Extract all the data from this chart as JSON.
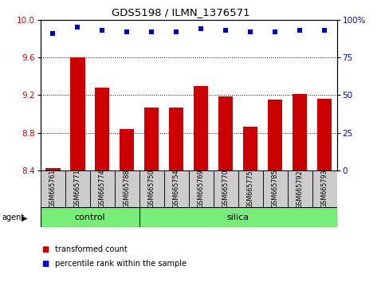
{
  "title": "GDS5198 / ILMN_1376571",
  "samples": [
    "GSM665761",
    "GSM665771",
    "GSM665774",
    "GSM665788",
    "GSM665750",
    "GSM665754",
    "GSM665769",
    "GSM665770",
    "GSM665775",
    "GSM665785",
    "GSM665792",
    "GSM665793"
  ],
  "bar_values": [
    8.43,
    9.6,
    9.28,
    8.84,
    9.07,
    9.07,
    9.3,
    9.19,
    8.87,
    9.15,
    9.21,
    9.16
  ],
  "percentile_values": [
    91,
    95,
    93,
    92,
    92,
    92,
    94,
    93,
    92,
    92,
    93,
    93
  ],
  "bar_color": "#cc0000",
  "dot_color": "#0000cc",
  "ylim_left": [
    8.4,
    10.0
  ],
  "ylim_right": [
    0,
    100
  ],
  "yticks_left": [
    8.4,
    8.8,
    9.2,
    9.6,
    10.0
  ],
  "yticks_right": [
    0,
    25,
    50,
    75,
    100
  ],
  "grid_lines": [
    8.8,
    9.2,
    9.6
  ],
  "control_count": 4,
  "silica_count": 8,
  "green_color": "#77ee77",
  "agent_label": "agent",
  "control_label": "control",
  "silica_label": "silica",
  "legend_bar_label": "transformed count",
  "legend_dot_label": "percentile rank within the sample",
  "tick_label_color_left": "#cc0000",
  "tick_label_color_right": "#0000cc",
  "background_xtick": "#cccccc"
}
